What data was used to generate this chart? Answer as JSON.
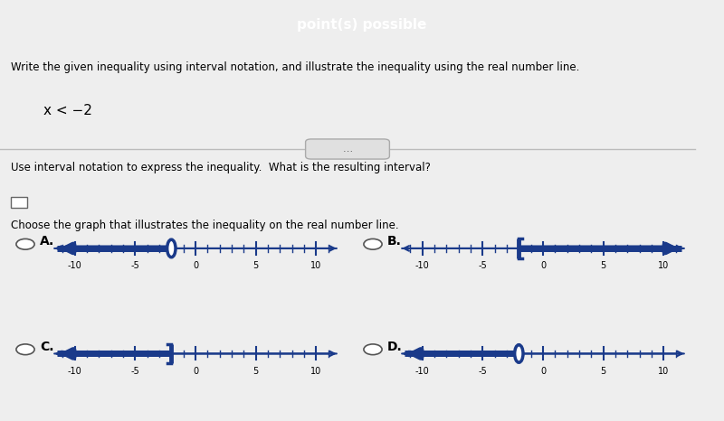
{
  "title_top": "point(s) possible",
  "question1": "Write the given inequality using interval notation, and illustrate the inequality using the real number line.",
  "inequality": "x < −2",
  "question2": "Use interval notation to express the inequality.  What is the resulting interval?",
  "question3": "Choose the graph that illustrates the inequality on the real number line.",
  "bg_color": "#eeeeee",
  "header_color": "#c0143c",
  "line_color": "#1a3a8a",
  "text_color": "#000000",
  "endpoint": -2,
  "xmin": -12,
  "xmax": 12,
  "major_ticks": [
    -10,
    -5,
    0,
    5,
    10
  ],
  "graphs": [
    {
      "label": "A.",
      "shade_left": true,
      "open_bracket": true,
      "shade_right": false,
      "bracket_dir": "right"
    },
    {
      "label": "B.",
      "shade_left": false,
      "open_bracket": false,
      "shade_right": true,
      "bracket_dir": "right"
    },
    {
      "label": "C.",
      "shade_left": true,
      "open_bracket": false,
      "shade_right": false,
      "bracket_dir": "left"
    },
    {
      "label": "D.",
      "shade_left": true,
      "open_bracket": true,
      "shade_right": false,
      "bracket_dir": "left"
    }
  ],
  "graph_positions": [
    {
      "col": 0,
      "row": 0
    },
    {
      "col": 1,
      "row": 0
    },
    {
      "col": 0,
      "row": 1
    },
    {
      "col": 1,
      "row": 1
    }
  ]
}
